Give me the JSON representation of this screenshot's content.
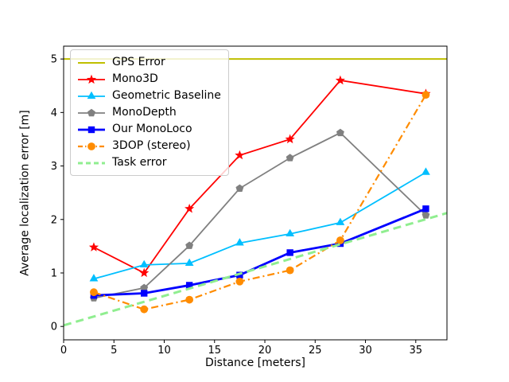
{
  "figure": {
    "xlabel": "Distance [meters]",
    "ylabel": "Average localization error [m]"
  },
  "chart_data": {
    "type": "line",
    "title": "",
    "xlabel": "Distance [meters]",
    "ylabel": "Average localization error [m]",
    "xlim": [
      0,
      38.1
    ],
    "ylim": [
      -0.25,
      5.24
    ],
    "xticks": [
      0,
      5,
      10,
      15,
      20,
      25,
      30,
      35
    ],
    "yticks": [
      0,
      1,
      2,
      3,
      4,
      5
    ],
    "grid": false,
    "legend_position": "upper left",
    "series": [
      {
        "name": "GPS Error",
        "color": "#bfbf00",
        "marker": "none",
        "linestyle": "solid",
        "linewidth": 2,
        "x": [
          0,
          38.1
        ],
        "y": [
          5.0,
          5.0
        ]
      },
      {
        "name": "Mono3D",
        "color": "#ff0000",
        "marker": "star",
        "linestyle": "solid",
        "linewidth": 1.8,
        "x": [
          3,
          8,
          12.5,
          17.5,
          22.5,
          27.5,
          36
        ],
        "y": [
          1.48,
          1.0,
          2.2,
          3.2,
          3.5,
          4.6,
          4.35
        ]
      },
      {
        "name": "Geometric Baseline",
        "color": "#00bfff",
        "marker": "triangle",
        "linestyle": "solid",
        "linewidth": 1.8,
        "x": [
          3,
          8,
          12.5,
          17.5,
          22.5,
          27.5,
          36
        ],
        "y": [
          0.89,
          1.15,
          1.18,
          1.56,
          1.73,
          1.94,
          2.88
        ]
      },
      {
        "name": "MonoDepth",
        "color": "#808080",
        "marker": "pentagon",
        "linestyle": "solid",
        "linewidth": 1.8,
        "x": [
          3,
          8,
          12.5,
          17.5,
          22.5,
          27.5,
          36
        ],
        "y": [
          0.53,
          0.72,
          1.51,
          2.58,
          3.15,
          3.62,
          2.08
        ]
      },
      {
        "name": "Our MonoLoco",
        "color": "#0000ff",
        "marker": "square",
        "linestyle": "solid",
        "linewidth": 2.8,
        "x": [
          3,
          8,
          12.5,
          17.5,
          22.5,
          27.5,
          36
        ],
        "y": [
          0.58,
          0.62,
          0.77,
          0.96,
          1.38,
          1.55,
          2.2
        ]
      },
      {
        "name": "3DOP (stereo)",
        "color": "#ff8c00",
        "marker": "circle",
        "linestyle": "dashdot",
        "linewidth": 2.2,
        "x": [
          3,
          8,
          12.5,
          17.5,
          22.5,
          27.5,
          36
        ],
        "y": [
          0.64,
          0.32,
          0.5,
          0.84,
          1.05,
          1.61,
          4.33
        ]
      },
      {
        "name": "Task error",
        "color": "#90ee90",
        "marker": "none",
        "linestyle": "dashed",
        "linewidth": 3,
        "x": [
          0,
          38.1
        ],
        "y": [
          0.02,
          2.12
        ]
      }
    ]
  }
}
